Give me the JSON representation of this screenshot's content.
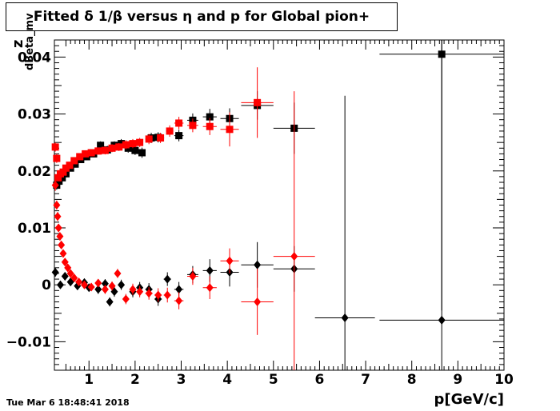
{
  "title": "Fitted δ 1/β versus η and p for Global pion+",
  "datestamp": "Tue Mar  6 18:48:41 2018",
  "chart_data": {
    "type": "scatter",
    "xlabel": "p[GeV/c]",
    "ylabel": "z",
    "ylabel_subscript": "dBeta_mv",
    "xlim": [
      0.25,
      10
    ],
    "ylim": [
      -0.015,
      0.043
    ],
    "x_ticks": [
      1,
      2,
      3,
      4,
      5,
      6,
      7,
      8,
      9,
      10
    ],
    "x_tick_labels": [
      "1",
      "2",
      "3",
      "4",
      "5",
      "6",
      "7",
      "8",
      "9",
      "10"
    ],
    "y_ticks": [
      -0.01,
      0,
      0.01,
      0.02,
      0.03,
      0.04
    ],
    "y_tick_labels": [
      "−0.01",
      "0",
      "0.01",
      "0.02",
      "0.03",
      "0.04"
    ],
    "grid": false,
    "series": [
      {
        "color": "#000000",
        "marker": "square",
        "points": [
          {
            "x": 0.3,
            "y": 0.0175,
            "xe": 0.03,
            "ye": 0.0008
          },
          {
            "x": 0.35,
            "y": 0.0182,
            "xe": 0.03,
            "ye": 0.0006
          },
          {
            "x": 0.42,
            "y": 0.0188,
            "xe": 0.03,
            "ye": 0.0006
          },
          {
            "x": 0.5,
            "y": 0.0195,
            "xe": 0.03,
            "ye": 0.0006
          },
          {
            "x": 0.6,
            "y": 0.0205,
            "xe": 0.04,
            "ye": 0.0006
          },
          {
            "x": 0.7,
            "y": 0.0212,
            "xe": 0.04,
            "ye": 0.0006
          },
          {
            "x": 0.82,
            "y": 0.022,
            "xe": 0.04,
            "ye": 0.0006
          },
          {
            "x": 0.95,
            "y": 0.0225,
            "xe": 0.05,
            "ye": 0.0006
          },
          {
            "x": 1.1,
            "y": 0.023,
            "xe": 0.05,
            "ye": 0.0006
          },
          {
            "x": 1.25,
            "y": 0.0245,
            "xe": 0.05,
            "ye": 0.0007
          },
          {
            "x": 1.4,
            "y": 0.0237,
            "xe": 0.05,
            "ye": 0.0007
          },
          {
            "x": 1.55,
            "y": 0.0245,
            "xe": 0.05,
            "ye": 0.0007
          },
          {
            "x": 1.7,
            "y": 0.0248,
            "xe": 0.05,
            "ye": 0.0008
          },
          {
            "x": 1.85,
            "y": 0.024,
            "xe": 0.05,
            "ye": 0.0008
          },
          {
            "x": 2.0,
            "y": 0.0236,
            "xe": 0.05,
            "ye": 0.0008
          },
          {
            "x": 2.15,
            "y": 0.0232,
            "xe": 0.06,
            "ye": 0.0009
          },
          {
            "x": 2.35,
            "y": 0.0258,
            "xe": 0.08,
            "ye": 0.0009
          },
          {
            "x": 2.5,
            "y": 0.0259,
            "xe": 0.08,
            "ye": 0.0009
          },
          {
            "x": 2.95,
            "y": 0.0262,
            "xe": 0.1,
            "ye": 0.001
          },
          {
            "x": 3.25,
            "y": 0.0289,
            "xe": 0.12,
            "ye": 0.0012
          },
          {
            "x": 3.62,
            "y": 0.0295,
            "xe": 0.15,
            "ye": 0.0014
          },
          {
            "x": 4.05,
            "y": 0.0292,
            "xe": 0.2,
            "ye": 0.0018
          },
          {
            "x": 4.65,
            "y": 0.0315,
            "xe": 0.35,
            "ye": 0.0025
          },
          {
            "x": 5.45,
            "y": 0.0275,
            "xe": 0.45,
            "ye": 0.0045
          },
          {
            "x": 8.65,
            "y": 0.0405,
            "xe": 1.35,
            "ye": 0.045
          }
        ]
      },
      {
        "color": "#000000",
        "marker": "diamond",
        "points": [
          {
            "x": 0.27,
            "y": 0.0022,
            "xe": 0.03,
            "ye": 0.0008
          },
          {
            "x": 0.38,
            "y": 0.0,
            "xe": 0.03,
            "ye": 0.0007
          },
          {
            "x": 0.48,
            "y": 0.0015,
            "xe": 0.03,
            "ye": 0.0007
          },
          {
            "x": 0.6,
            "y": 0.0005,
            "xe": 0.04,
            "ye": 0.0007
          },
          {
            "x": 0.75,
            "y": -0.0002,
            "xe": 0.04,
            "ye": 0.0007
          },
          {
            "x": 0.9,
            "y": 0.0004,
            "xe": 0.05,
            "ye": 0.0007
          },
          {
            "x": 1.0,
            "y": -0.0005,
            "xe": 0.05,
            "ye": 0.0007
          },
          {
            "x": 1.2,
            "y": -0.0008,
            "xe": 0.05,
            "ye": 0.0008
          },
          {
            "x": 1.35,
            "y": 0.0002,
            "xe": 0.05,
            "ye": 0.0008
          },
          {
            "x": 1.45,
            "y": -0.003,
            "xe": 0.05,
            "ye": 0.0008
          },
          {
            "x": 1.55,
            "y": -0.0012,
            "xe": 0.05,
            "ye": 0.0009
          },
          {
            "x": 1.7,
            "y": 0.0,
            "xe": 0.05,
            "ye": 0.0009
          },
          {
            "x": 1.95,
            "y": -0.0012,
            "xe": 0.05,
            "ye": 0.001
          },
          {
            "x": 2.1,
            "y": -0.0005,
            "xe": 0.06,
            "ye": 0.001
          },
          {
            "x": 2.3,
            "y": -0.0008,
            "xe": 0.08,
            "ye": 0.0011
          },
          {
            "x": 2.5,
            "y": -0.0025,
            "xe": 0.08,
            "ye": 0.0012
          },
          {
            "x": 2.7,
            "y": 0.001,
            "xe": 0.08,
            "ye": 0.0012
          },
          {
            "x": 2.95,
            "y": -0.0008,
            "xe": 0.1,
            "ye": 0.0013
          },
          {
            "x": 3.25,
            "y": 0.0018,
            "xe": 0.12,
            "ye": 0.0015
          },
          {
            "x": 3.62,
            "y": 0.0025,
            "xe": 0.15,
            "ye": 0.002
          },
          {
            "x": 4.05,
            "y": 0.0022,
            "xe": 0.2,
            "ye": 0.0025
          },
          {
            "x": 4.65,
            "y": 0.0035,
            "xe": 0.35,
            "ye": 0.004
          },
          {
            "x": 5.45,
            "y": 0.0028,
            "xe": 0.45,
            "ye": 0.004
          },
          {
            "x": 6.55,
            "y": -0.0058,
            "xe": 0.65,
            "ye": 0.039
          },
          {
            "x": 8.65,
            "y": -0.0062,
            "xe": 1.35,
            "ye": 0.05
          }
        ]
      },
      {
        "color": "#ff0000",
        "marker": "square",
        "points": [
          {
            "x": 0.27,
            "y": 0.0242,
            "xe": 0.02,
            "ye": 0.0008
          },
          {
            "x": 0.3,
            "y": 0.0222,
            "xe": 0.02,
            "ye": 0.0008
          },
          {
            "x": 0.33,
            "y": 0.0188,
            "xe": 0.02,
            "ye": 0.0006
          },
          {
            "x": 0.38,
            "y": 0.0195,
            "xe": 0.02,
            "ye": 0.0006
          },
          {
            "x": 0.44,
            "y": 0.0198,
            "xe": 0.03,
            "ye": 0.0006
          },
          {
            "x": 0.5,
            "y": 0.0205,
            "xe": 0.03,
            "ye": 0.0006
          },
          {
            "x": 0.58,
            "y": 0.021,
            "xe": 0.04,
            "ye": 0.0006
          },
          {
            "x": 0.68,
            "y": 0.0218,
            "xe": 0.04,
            "ye": 0.0006
          },
          {
            "x": 0.8,
            "y": 0.0225,
            "xe": 0.04,
            "ye": 0.0006
          },
          {
            "x": 0.92,
            "y": 0.023,
            "xe": 0.05,
            "ye": 0.0006
          },
          {
            "x": 1.05,
            "y": 0.0232,
            "xe": 0.05,
            "ye": 0.0006
          },
          {
            "x": 1.2,
            "y": 0.0235,
            "xe": 0.05,
            "ye": 0.0006
          },
          {
            "x": 1.35,
            "y": 0.0236,
            "xe": 0.05,
            "ye": 0.0007
          },
          {
            "x": 1.5,
            "y": 0.024,
            "xe": 0.05,
            "ye": 0.0007
          },
          {
            "x": 1.65,
            "y": 0.0242,
            "xe": 0.05,
            "ye": 0.0007
          },
          {
            "x": 1.8,
            "y": 0.0246,
            "xe": 0.05,
            "ye": 0.0008
          },
          {
            "x": 1.95,
            "y": 0.0248,
            "xe": 0.05,
            "ye": 0.0008
          },
          {
            "x": 2.1,
            "y": 0.025,
            "xe": 0.06,
            "ye": 0.0008
          },
          {
            "x": 2.3,
            "y": 0.0256,
            "xe": 0.08,
            "ye": 0.0009
          },
          {
            "x": 2.55,
            "y": 0.0258,
            "xe": 0.08,
            "ye": 0.0009
          },
          {
            "x": 2.75,
            "y": 0.027,
            "xe": 0.08,
            "ye": 0.001
          },
          {
            "x": 2.95,
            "y": 0.0284,
            "xe": 0.1,
            "ye": 0.0011
          },
          {
            "x": 3.25,
            "y": 0.028,
            "xe": 0.12,
            "ye": 0.0012
          },
          {
            "x": 3.62,
            "y": 0.0278,
            "xe": 0.15,
            "ye": 0.0015
          },
          {
            "x": 4.05,
            "y": 0.0273,
            "xe": 0.2,
            "ye": 0.003
          },
          {
            "x": 4.65,
            "y": 0.032,
            "xe": 0.35,
            "ye": 0.0062
          }
        ]
      },
      {
        "color": "#ff0000",
        "marker": "diamond",
        "points": [
          {
            "x": 0.27,
            "y": 0.0175,
            "xe": 0.02,
            "ye": 0.001
          },
          {
            "x": 0.3,
            "y": 0.014,
            "xe": 0.02,
            "ye": 0.0008
          },
          {
            "x": 0.32,
            "y": 0.012,
            "xe": 0.02,
            "ye": 0.0008
          },
          {
            "x": 0.34,
            "y": 0.01,
            "xe": 0.02,
            "ye": 0.0007
          },
          {
            "x": 0.37,
            "y": 0.0085,
            "xe": 0.02,
            "ye": 0.0007
          },
          {
            "x": 0.4,
            "y": 0.007,
            "xe": 0.02,
            "ye": 0.0007
          },
          {
            "x": 0.44,
            "y": 0.0055,
            "xe": 0.03,
            "ye": 0.0006
          },
          {
            "x": 0.48,
            "y": 0.004,
            "xe": 0.03,
            "ye": 0.0006
          },
          {
            "x": 0.54,
            "y": 0.003,
            "xe": 0.03,
            "ye": 0.0006
          },
          {
            "x": 0.6,
            "y": 0.002,
            "xe": 0.03,
            "ye": 0.0006
          },
          {
            "x": 0.68,
            "y": 0.0012,
            "xe": 0.04,
            "ye": 0.0006
          },
          {
            "x": 0.78,
            "y": 0.0005,
            "xe": 0.04,
            "ye": 0.0006
          },
          {
            "x": 0.9,
            "y": 0.0,
            "xe": 0.05,
            "ye": 0.0007
          },
          {
            "x": 1.05,
            "y": -0.0004,
            "xe": 0.05,
            "ye": 0.0007
          },
          {
            "x": 1.2,
            "y": 0.0003,
            "xe": 0.05,
            "ye": 0.0007
          },
          {
            "x": 1.35,
            "y": -0.0008,
            "xe": 0.05,
            "ye": 0.0008
          },
          {
            "x": 1.5,
            "y": -0.0002,
            "xe": 0.05,
            "ye": 0.0008
          },
          {
            "x": 1.62,
            "y": 0.002,
            "xe": 0.05,
            "ye": 0.0008
          },
          {
            "x": 1.8,
            "y": -0.0025,
            "xe": 0.05,
            "ye": 0.0009
          },
          {
            "x": 1.95,
            "y": -0.0008,
            "xe": 0.05,
            "ye": 0.001
          },
          {
            "x": 2.1,
            "y": -0.0012,
            "xe": 0.06,
            "ye": 0.001
          },
          {
            "x": 2.3,
            "y": -0.0015,
            "xe": 0.08,
            "ye": 0.0011
          },
          {
            "x": 2.5,
            "y": -0.0018,
            "xe": 0.08,
            "ye": 0.0012
          },
          {
            "x": 2.7,
            "y": -0.0018,
            "xe": 0.08,
            "ye": 0.0013
          },
          {
            "x": 2.95,
            "y": -0.0028,
            "xe": 0.1,
            "ye": 0.0015
          },
          {
            "x": 3.25,
            "y": 0.0015,
            "xe": 0.12,
            "ye": 0.0015
          },
          {
            "x": 3.62,
            "y": -0.0005,
            "xe": 0.15,
            "ye": 0.002
          },
          {
            "x": 4.05,
            "y": 0.0042,
            "xe": 0.2,
            "ye": 0.0022
          },
          {
            "x": 4.65,
            "y": -0.003,
            "xe": 0.35,
            "ye": 0.0058
          },
          {
            "x": 5.45,
            "y": 0.005,
            "xe": 0.45,
            "ye": 0.029
          }
        ]
      }
    ]
  }
}
